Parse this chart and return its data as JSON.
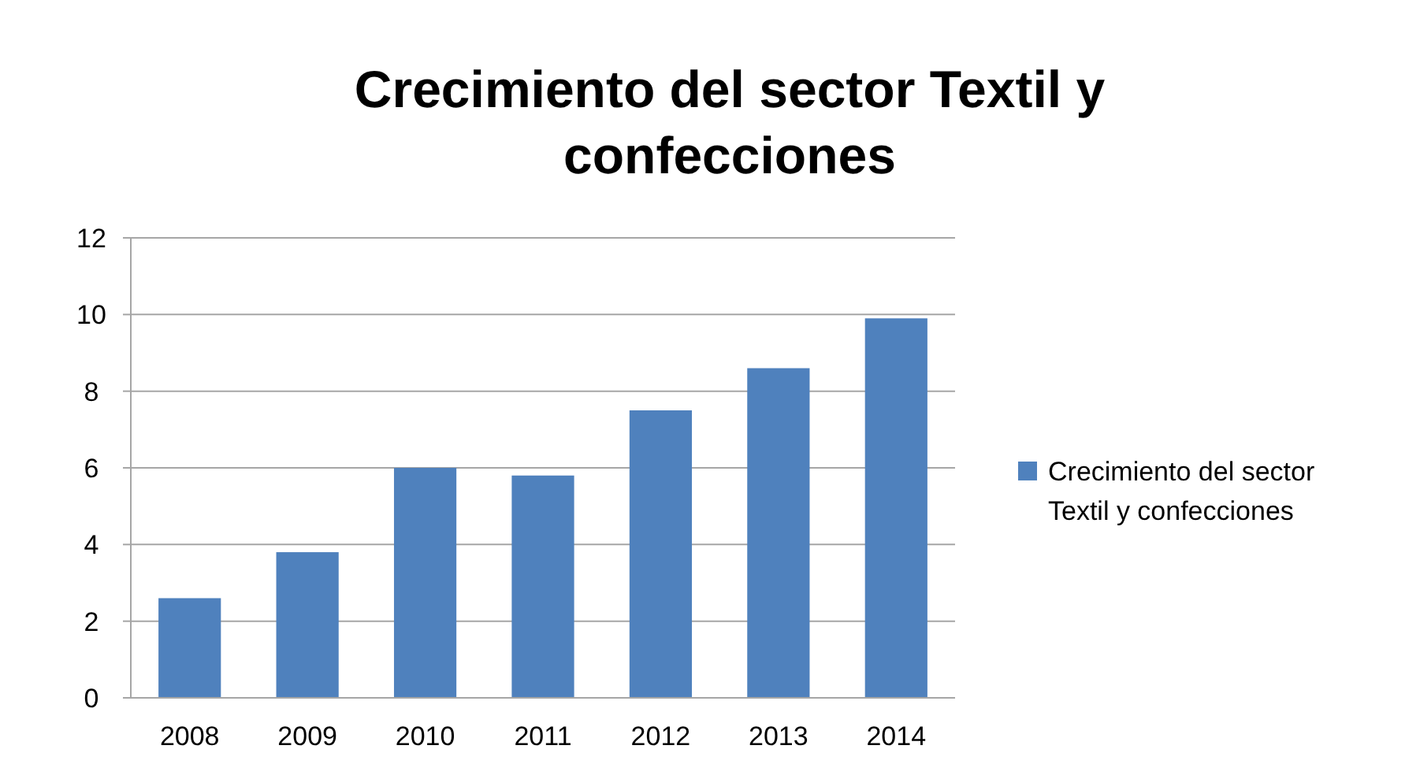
{
  "chart_data": {
    "type": "bar",
    "title": "Crecimiento del sector Textil y confecciones",
    "categories": [
      "2008",
      "2009",
      "2010",
      "2011",
      "2012",
      "2013",
      "2014"
    ],
    "series": [
      {
        "name": "Crecimiento del sector Textil y confecciones",
        "color": "#4f81bd",
        "values": [
          2.6,
          3.8,
          6.0,
          5.8,
          7.5,
          8.6,
          9.9
        ]
      }
    ],
    "ylim": [
      0,
      12
    ],
    "yticks": [
      0,
      2,
      4,
      6,
      8,
      10,
      12
    ],
    "grid": "y",
    "legend": "right"
  }
}
